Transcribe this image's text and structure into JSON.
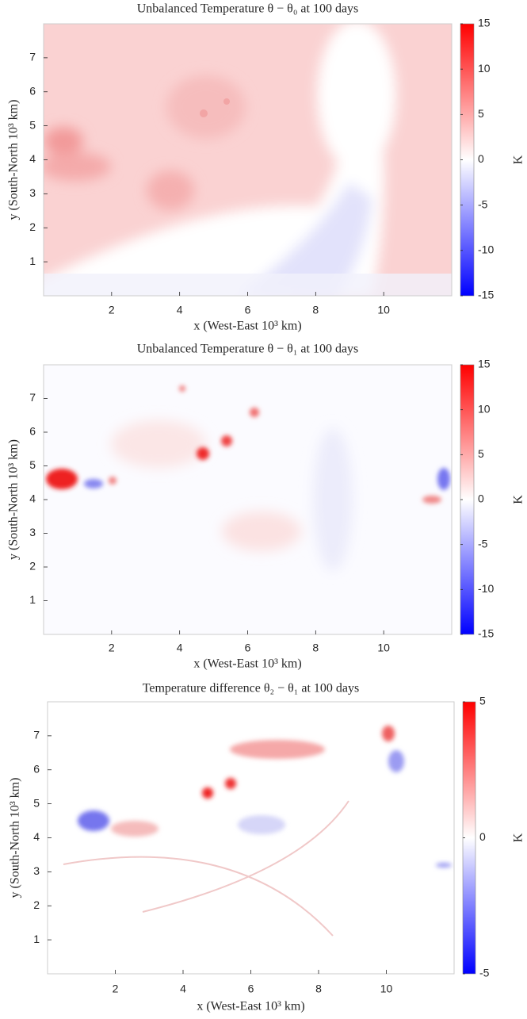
{
  "chart_data": [
    {
      "type": "heatmap",
      "title": "Unbalanced Temperature θ − θ₀ at 100 days",
      "xlabel": "x  (West-East 10³ km)",
      "ylabel": "y  (South-North 10³ km)",
      "colorbar_label": "K",
      "xlim": [
        0,
        12
      ],
      "xticks": [
        2,
        4,
        6,
        8,
        10
      ],
      "ylim": [
        0,
        8
      ],
      "yticks": [
        1,
        2,
        3,
        4,
        5,
        6,
        7
      ],
      "clim": [
        -15,
        15
      ],
      "cticks": [
        -15,
        -10,
        -5,
        0,
        5,
        10,
        15
      ],
      "colormap": [
        "#0000ff",
        "#ffffff",
        "#ff0000"
      ]
    },
    {
      "type": "heatmap",
      "title": "Unbalanced Temperature θ − θ₁ at 100 days",
      "xlabel": "x  (West-East 10³ km)",
      "ylabel": "y  (South-North 10³ km)",
      "colorbar_label": "K",
      "xlim": [
        0,
        12
      ],
      "xticks": [
        2,
        4,
        6,
        8,
        10
      ],
      "ylim": [
        0,
        8
      ],
      "yticks": [
        1,
        2,
        3,
        4,
        5,
        6,
        7
      ],
      "clim": [
        -15,
        15
      ],
      "cticks": [
        -15,
        -10,
        -5,
        0,
        5,
        10,
        15
      ],
      "colormap": [
        "#0000ff",
        "#ffffff",
        "#ff0000"
      ]
    },
    {
      "type": "heatmap",
      "title": "Temperature difference θ₂ − θ₁ at 100 days",
      "xlabel": "x  (West-East 10³ km)",
      "ylabel": "y  (South-North 10³ km)",
      "colorbar_label": "K",
      "xlim": [
        0,
        12
      ],
      "xticks": [
        2,
        4,
        6,
        8,
        10
      ],
      "ylim": [
        0,
        8
      ],
      "yticks": [
        1,
        2,
        3,
        4,
        5,
        6,
        7
      ],
      "clim": [
        -5,
        5
      ],
      "cticks": [
        -5,
        0,
        5
      ],
      "colormap": [
        "#0000ff",
        "#ffffff",
        "#ff0000"
      ]
    }
  ]
}
